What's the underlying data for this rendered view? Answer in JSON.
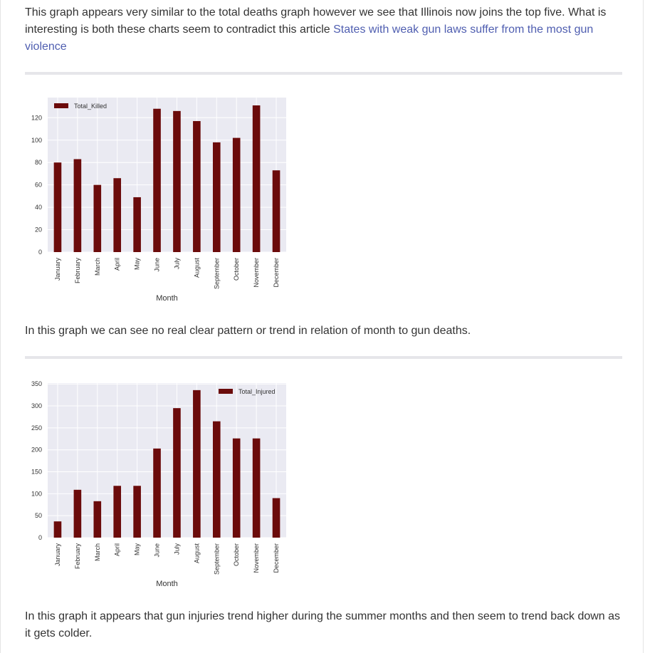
{
  "paragraph1": {
    "text": "This graph appears very similar to the total deaths graph however we see that Illinois now joins the top five. What is interesting is both these charts seem to contradict this article ",
    "link_text": "States with weak gun laws suffer from the most gun violence"
  },
  "paragraph2": {
    "text": "In this graph we can see no real clear pattern or trend in relation of month to gun deaths."
  },
  "paragraph3": {
    "text": "In this graph it appears that gun injuries trend higher during the summer months and then seem to trend back down as it gets colder."
  },
  "colors": {
    "bar": "#6b0b0b",
    "plot_bg": "#eaeaf2",
    "grid": "#ffffff",
    "link": "#4f5eb0",
    "rule": "#e6e6ea"
  },
  "chart_data": [
    {
      "type": "bar",
      "title": "",
      "xlabel": "Month",
      "ylabel": "",
      "categories": [
        "January",
        "February",
        "March",
        "April",
        "May",
        "June",
        "July",
        "August",
        "September",
        "October",
        "November",
        "December"
      ],
      "series": [
        {
          "name": "Total_Killed",
          "values": [
            80,
            83,
            60,
            66,
            49,
            128,
            126,
            117,
            98,
            102,
            131,
            73
          ]
        }
      ],
      "ylim": [
        0,
        138
      ],
      "yticks": [
        0,
        20,
        40,
        60,
        80,
        100,
        120
      ],
      "grid": true,
      "legend": "top-left"
    },
    {
      "type": "bar",
      "title": "",
      "xlabel": "Month",
      "ylabel": "",
      "categories": [
        "January",
        "February",
        "March",
        "April",
        "May",
        "June",
        "July",
        "August",
        "September",
        "October",
        "November",
        "December"
      ],
      "series": [
        {
          "name": "Total_Injured",
          "values": [
            37,
            109,
            83,
            118,
            118,
            203,
            295,
            336,
            265,
            226,
            226,
            90
          ]
        }
      ],
      "ylim": [
        0,
        352
      ],
      "yticks": [
        0,
        50,
        100,
        150,
        200,
        250,
        300,
        350
      ],
      "grid": true,
      "legend": "top-right"
    }
  ]
}
